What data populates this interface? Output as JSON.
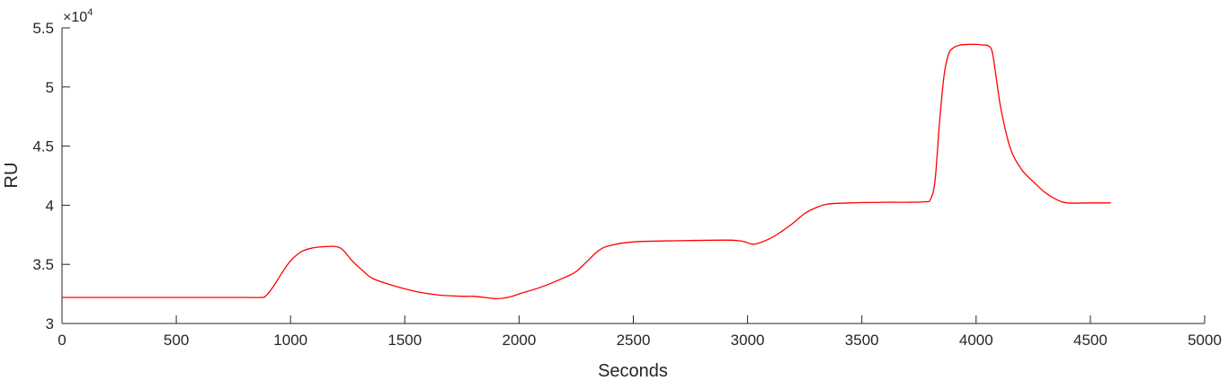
{
  "chart_data": {
    "type": "line",
    "xlabel": "Seconds",
    "ylabel": "RU",
    "xlim": [
      0,
      5000
    ],
    "ylim": [
      3.0,
      5.5
    ],
    "x_ticks": [
      "0",
      "500",
      "1000",
      "1500",
      "2000",
      "2500",
      "3000",
      "3500",
      "4000",
      "4500",
      "5000"
    ],
    "y_ticks": [
      "3",
      "3.5",
      "4",
      "4.5",
      "5",
      "5.5"
    ],
    "y_multiplier": {
      "base": "×10",
      "exponent": "4"
    },
    "grid": false,
    "series": [
      {
        "color": "#ff0000",
        "x": [
          0,
          200,
          400,
          600,
          800,
          870,
          890,
          920,
          960,
          1000,
          1050,
          1100,
          1150,
          1200,
          1230,
          1270,
          1320,
          1360,
          1450,
          1550,
          1650,
          1750,
          1800,
          1850,
          1900,
          1950,
          2000,
          2100,
          2200,
          2250,
          2300,
          2350,
          2400,
          2500,
          2700,
          2900,
          2960,
          2990,
          3020,
          3050,
          3100,
          3150,
          3200,
          3250,
          3300,
          3350,
          3450,
          3600,
          3700,
          3780,
          3800,
          3820,
          3840,
          3860,
          3880,
          3900,
          3930,
          3970,
          4000,
          4030,
          4050,
          4070,
          4090,
          4110,
          4150,
          4200,
          4250,
          4300,
          4350,
          4400,
          4500,
          4590
        ],
        "y": [
          3.22,
          3.22,
          3.22,
          3.22,
          3.22,
          3.22,
          3.23,
          3.3,
          3.42,
          3.53,
          3.61,
          3.64,
          3.65,
          3.65,
          3.62,
          3.53,
          3.44,
          3.38,
          3.32,
          3.27,
          3.24,
          3.23,
          3.23,
          3.22,
          3.21,
          3.22,
          3.25,
          3.31,
          3.39,
          3.44,
          3.53,
          3.62,
          3.66,
          3.69,
          3.7,
          3.705,
          3.7,
          3.69,
          3.67,
          3.68,
          3.72,
          3.78,
          3.85,
          3.93,
          3.98,
          4.01,
          4.02,
          4.025,
          4.025,
          4.03,
          4.05,
          4.2,
          4.7,
          5.1,
          5.28,
          5.33,
          5.355,
          5.36,
          5.36,
          5.355,
          5.35,
          5.3,
          5.05,
          4.8,
          4.48,
          4.3,
          4.2,
          4.11,
          4.05,
          4.02,
          4.02,
          4.02
        ]
      }
    ]
  }
}
